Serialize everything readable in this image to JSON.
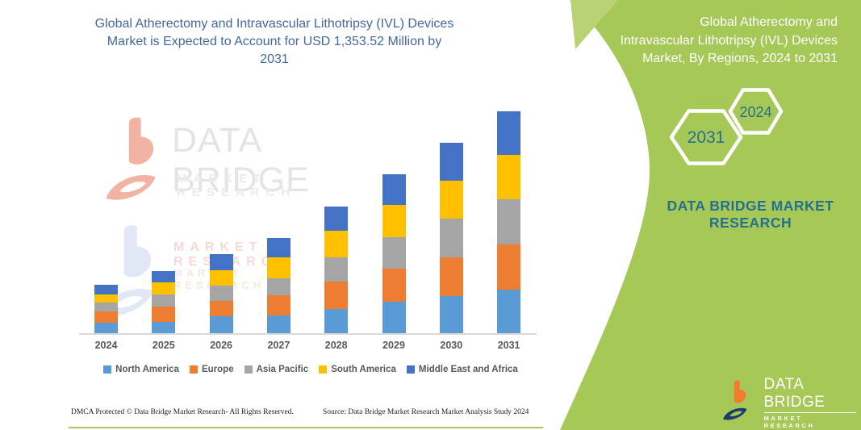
{
  "left_panel": {
    "title": "Global Atherectomy and Intravascular Lithotripsy (IVL) Devices\nMarket is Expected to Account for USD 1,353.52 Million by\n2031",
    "footer_left": "DMCA Protected © Data Bridge Market Research-  All Rights Reserved.",
    "footer_right": "Source: Data Bridge Market Research  Market Analysis Study 2024"
  },
  "right_panel": {
    "title": "Global Atherectomy and\nIntravascular Lithotripsy (IVL) Devices\nMarket, By Regions, 2024 to 2031",
    "hexagon_back_label": "2031",
    "hexagon_front_label": "2024",
    "brand_text": "DATA BRIDGE MARKET\nRESEARCH",
    "logo_name": "DATA BRIDGE",
    "logo_sub": "MARKET RESEARCH"
  },
  "watermark": {
    "brand": "DATA BRIDGE",
    "brand_sub": "MARKET RESEARCH",
    "echo_sub1": "MARKET RESEARCH",
    "echo_sub2": "MARKET RESEARCH"
  },
  "colors": {
    "panel_green": "#A6C857",
    "panel_green_light": "#B9D273",
    "teal_text": "#26708F",
    "left_title_blue": "#41699F",
    "axis_gray": "#D9D9D9",
    "label_gray": "#595959",
    "logo_orange": "#F07D2E",
    "logo_navy": "#1C3E6E"
  },
  "chart_data": {
    "type": "bar",
    "stacked": true,
    "title": "Global Atherectomy and Intravascular Lithotripsy (IVL) Devices Market, By Regions, 2024 to 2031",
    "unit": "USD Million (estimated from bar heights; 2031 total anchored to 1,353.52 from headline)",
    "categories": [
      "2024",
      "2025",
      "2026",
      "2027",
      "2028",
      "2029",
      "2030",
      "2031"
    ],
    "series": [
      {
        "name": "North America",
        "color": "#5B9BD5",
        "values": [
          62,
          71,
          103,
          107,
          147,
          194,
          226,
          267
        ]
      },
      {
        "name": "Europe",
        "color": "#ED7D31",
        "values": [
          69,
          90,
          93,
          126,
          166,
          197,
          238,
          273
        ]
      },
      {
        "name": "Asia Pacific",
        "color": "#A5A5A5",
        "values": [
          54,
          77,
          95,
          102,
          151,
          192,
          233,
          275
        ]
      },
      {
        "name": "South America",
        "color": "#FFC000",
        "values": [
          53,
          70,
          90,
          128,
          159,
          198,
          230,
          270
        ]
      },
      {
        "name": "Middle East and Africa",
        "color": "#4472C4",
        "values": [
          57,
          70,
          102,
          115,
          149,
          188,
          234,
          268
        ]
      }
    ],
    "totals_estimated": [
      295,
      378,
      483,
      578,
      772,
      969,
      1161,
      1353
    ],
    "headline_value_2031": "USD 1,353.52 Million",
    "y_axis_visible": false,
    "grid": false,
    "legend_position": "bottom"
  }
}
